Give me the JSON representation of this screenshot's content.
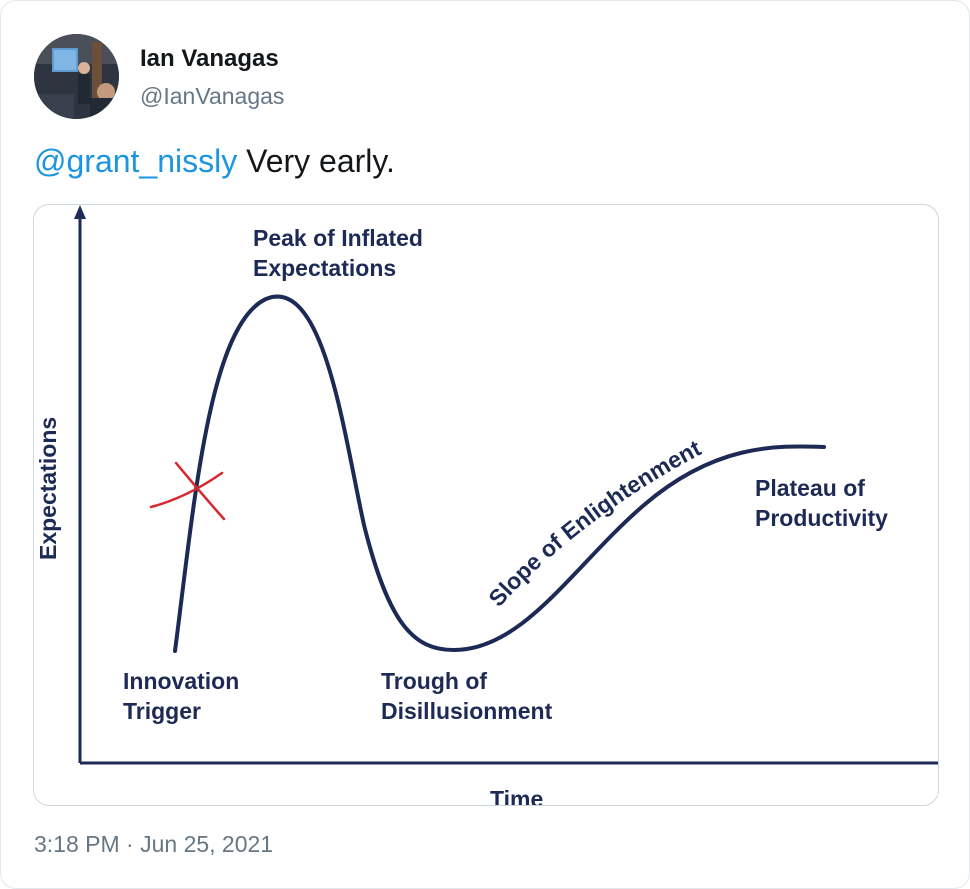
{
  "tweet": {
    "author_name": "Ian Vanagas",
    "author_handle": "@IanVanagas",
    "mention": "@grant_nissly",
    "text": " Very early.",
    "timestamp": "3:18 PM · Jun 25, 2021"
  },
  "chart_data": {
    "type": "line",
    "title": "",
    "xlabel": "Time",
    "ylabel": "Expectations",
    "grid": false,
    "labels": {
      "peak_line1": "Peak of Inflated",
      "peak_line2": "Expectations",
      "plateau_line1": "Plateau of",
      "plateau_line2": "Productivity",
      "slope": "Slope of Enlightenment",
      "innovation_line1": "Innovation",
      "innovation_line2": "Trigger",
      "trough_line1": "Trough of",
      "trough_line2": "Disillusionment"
    },
    "annotation": "red hand-drawn X on the rising curve",
    "colors": {
      "curve": "#1d2a55",
      "annotation": "#d7282f"
    }
  }
}
